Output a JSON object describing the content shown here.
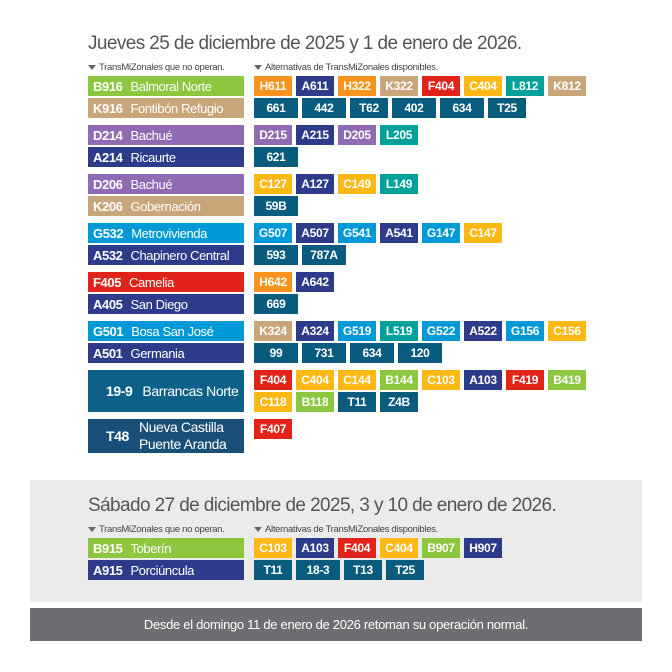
{
  "sections": [
    {
      "title": "Jueves 25 de diciembre de 2025 y 1 de enero de 2026.",
      "headers": [
        "TransMiZonales que no operan.",
        "Alternativas de TransMiZonales disponibles."
      ],
      "groups": [
        {
          "routes": [
            {
              "code": "B916",
              "name": "Balmoral Norte",
              "color": "#8dc63f"
            },
            {
              "code": "K916",
              "name": "Fontibón Refugio",
              "color": "#c9a57a"
            }
          ],
          "alternatives": [
            [
              {
                "code": "H611",
                "color": "#f7941d"
              },
              {
                "code": "A611",
                "color": "#2e3b8b"
              },
              {
                "code": "H322",
                "color": "#f7941d"
              },
              {
                "code": "K322",
                "color": "#c9a57a"
              },
              {
                "code": "F404",
                "color": "#e2231a"
              },
              {
                "code": "C404",
                "color": "#fdb813"
              },
              {
                "code": "L812",
                "color": "#00a19a"
              },
              {
                "code": "K812",
                "color": "#c9a57a"
              }
            ],
            [
              {
                "code": "661",
                "color": "#0a5c7f"
              },
              {
                "code": "442",
                "color": "#0a5c7f"
              },
              {
                "code": "T62",
                "color": "#0a5c7f"
              },
              {
                "code": "402",
                "color": "#0a5c7f"
              },
              {
                "code": "634",
                "color": "#0a5c7f"
              },
              {
                "code": "T25",
                "color": "#0a5c7f"
              }
            ]
          ]
        },
        {
          "routes": [
            {
              "code": "D214",
              "name": "Bachué",
              "color": "#8f6bb3"
            },
            {
              "code": "A214",
              "name": "Ricaurte",
              "color": "#2e3b8b"
            }
          ],
          "alternatives": [
            [
              {
                "code": "D215",
                "color": "#8f6bb3"
              },
              {
                "code": "A215",
                "color": "#2e3b8b"
              },
              {
                "code": "D205",
                "color": "#8f6bb3"
              },
              {
                "code": "L205",
                "color": "#00a19a"
              }
            ],
            [
              {
                "code": "621",
                "color": "#0a5c7f"
              }
            ]
          ]
        },
        {
          "routes": [
            {
              "code": "D206",
              "name": "Bachué",
              "color": "#8f6bb3"
            },
            {
              "code": "K206",
              "name": "Gobernación",
              "color": "#c9a57a"
            }
          ],
          "alternatives": [
            [
              {
                "code": "C127",
                "color": "#fdb813"
              },
              {
                "code": "A127",
                "color": "#2e3b8b"
              },
              {
                "code": "C149",
                "color": "#fdb813"
              },
              {
                "code": "L149",
                "color": "#00a19a"
              }
            ],
            [
              {
                "code": "59B",
                "color": "#0a5c7f"
              }
            ]
          ]
        },
        {
          "routes": [
            {
              "code": "G532",
              "name": "Metrovivienda",
              "color": "#0099d8"
            },
            {
              "code": "A532",
              "name": "Chapinero Central",
              "color": "#2e3b8b"
            }
          ],
          "alternatives": [
            [
              {
                "code": "G507",
                "color": "#0099d8"
              },
              {
                "code": "A507",
                "color": "#2e3b8b"
              },
              {
                "code": "G541",
                "color": "#0099d8"
              },
              {
                "code": "A541",
                "color": "#2e3b8b"
              },
              {
                "code": "G147",
                "color": "#0099d8"
              },
              {
                "code": "C147",
                "color": "#fdb813"
              }
            ],
            [
              {
                "code": "593",
                "color": "#0a5c7f"
              },
              {
                "code": "787A",
                "color": "#0a5c7f"
              }
            ]
          ]
        },
        {
          "routes": [
            {
              "code": "F405",
              "name": "Camelia",
              "color": "#e2231a"
            },
            {
              "code": "A405",
              "name": "San Diego",
              "color": "#2e3b8b"
            }
          ],
          "alternatives": [
            [
              {
                "code": "H642",
                "color": "#f7941d"
              },
              {
                "code": "A642",
                "color": "#2e3b8b"
              }
            ],
            [
              {
                "code": "669",
                "color": "#0a5c7f"
              }
            ]
          ]
        },
        {
          "routes": [
            {
              "code": "G501",
              "name": "Bosa San José",
              "color": "#0099d8"
            },
            {
              "code": "A501",
              "name": "Germania",
              "color": "#2e3b8b"
            }
          ],
          "alternatives": [
            [
              {
                "code": "K324",
                "color": "#c9a57a"
              },
              {
                "code": "A324",
                "color": "#2e3b8b"
              },
              {
                "code": "G519",
                "color": "#0099d8"
              },
              {
                "code": "L519",
                "color": "#00a19a"
              },
              {
                "code": "G522",
                "color": "#0099d8"
              },
              {
                "code": "A522",
                "color": "#2e3b8b"
              },
              {
                "code": "G156",
                "color": "#0099d8"
              },
              {
                "code": "C156",
                "color": "#fdb813"
              }
            ],
            [
              {
                "code": "99",
                "color": "#0a5c7f"
              },
              {
                "code": "731",
                "color": "#0a5c7f"
              },
              {
                "code": "634",
                "color": "#0a5c7f"
              },
              {
                "code": "120",
                "color": "#0a5c7f"
              }
            ]
          ]
        },
        {
          "routes": [
            {
              "code": "19-9",
              "name": "Barrancas Norte",
              "color": "#0d6189"
            }
          ],
          "alternatives": [
            [
              {
                "code": "F404",
                "color": "#e2231a"
              },
              {
                "code": "C404",
                "color": "#fdb813"
              },
              {
                "code": "C144",
                "color": "#fdb813"
              },
              {
                "code": "B144",
                "color": "#8dc63f"
              },
              {
                "code": "C103",
                "color": "#fdb813"
              },
              {
                "code": "A103",
                "color": "#2e3b8b"
              },
              {
                "code": "F419",
                "color": "#e2231a"
              },
              {
                "code": "B419",
                "color": "#8dc63f"
              }
            ],
            [
              {
                "code": "C118",
                "color": "#fdb813"
              },
              {
                "code": "B118",
                "color": "#8dc63f"
              },
              {
                "code": "T11",
                "color": "#0a5c7f"
              },
              {
                "code": "Z4B",
                "color": "#0a5c7f"
              }
            ]
          ]
        },
        {
          "routes": [
            {
              "code": "T48",
              "name": [
                "Nueva Castilla",
                "Puente Aranda"
              ],
              "color": "#1a4f7a"
            }
          ],
          "alternatives": [
            [
              {
                "code": "F407",
                "color": "#e2231a"
              }
            ]
          ]
        }
      ]
    },
    {
      "title": "Sábado 27 de diciembre de 2025, 3 y 10 de enero de 2026.",
      "headers": [
        "TransMiZonales que no operan.",
        "Alternativas de TransMiZonales disponibles."
      ],
      "groups": [
        {
          "routes": [
            {
              "code": "B915",
              "name": "Toberín",
              "color": "#8dc63f"
            },
            {
              "code": "A915",
              "name": "Porciúncula",
              "color": "#2e3b8b"
            }
          ],
          "alternatives": [
            [
              {
                "code": "C103",
                "color": "#fdb813"
              },
              {
                "code": "A103",
                "color": "#2e3b8b"
              },
              {
                "code": "F404",
                "color": "#e2231a"
              },
              {
                "code": "C404",
                "color": "#fdb813"
              },
              {
                "code": "B907",
                "color": "#8dc63f"
              },
              {
                "code": "H907",
                "color": "#2e3b8b"
              }
            ],
            [
              {
                "code": "T11",
                "color": "#0a5c7f"
              },
              {
                "code": "18-3",
                "color": "#0a5c7f"
              },
              {
                "code": "T13",
                "color": "#0a5c7f"
              },
              {
                "code": "T25",
                "color": "#0a5c7f"
              }
            ]
          ]
        }
      ]
    }
  ],
  "footer": "Desde el domingo 11 de enero de 2026 retoman su operación normal."
}
